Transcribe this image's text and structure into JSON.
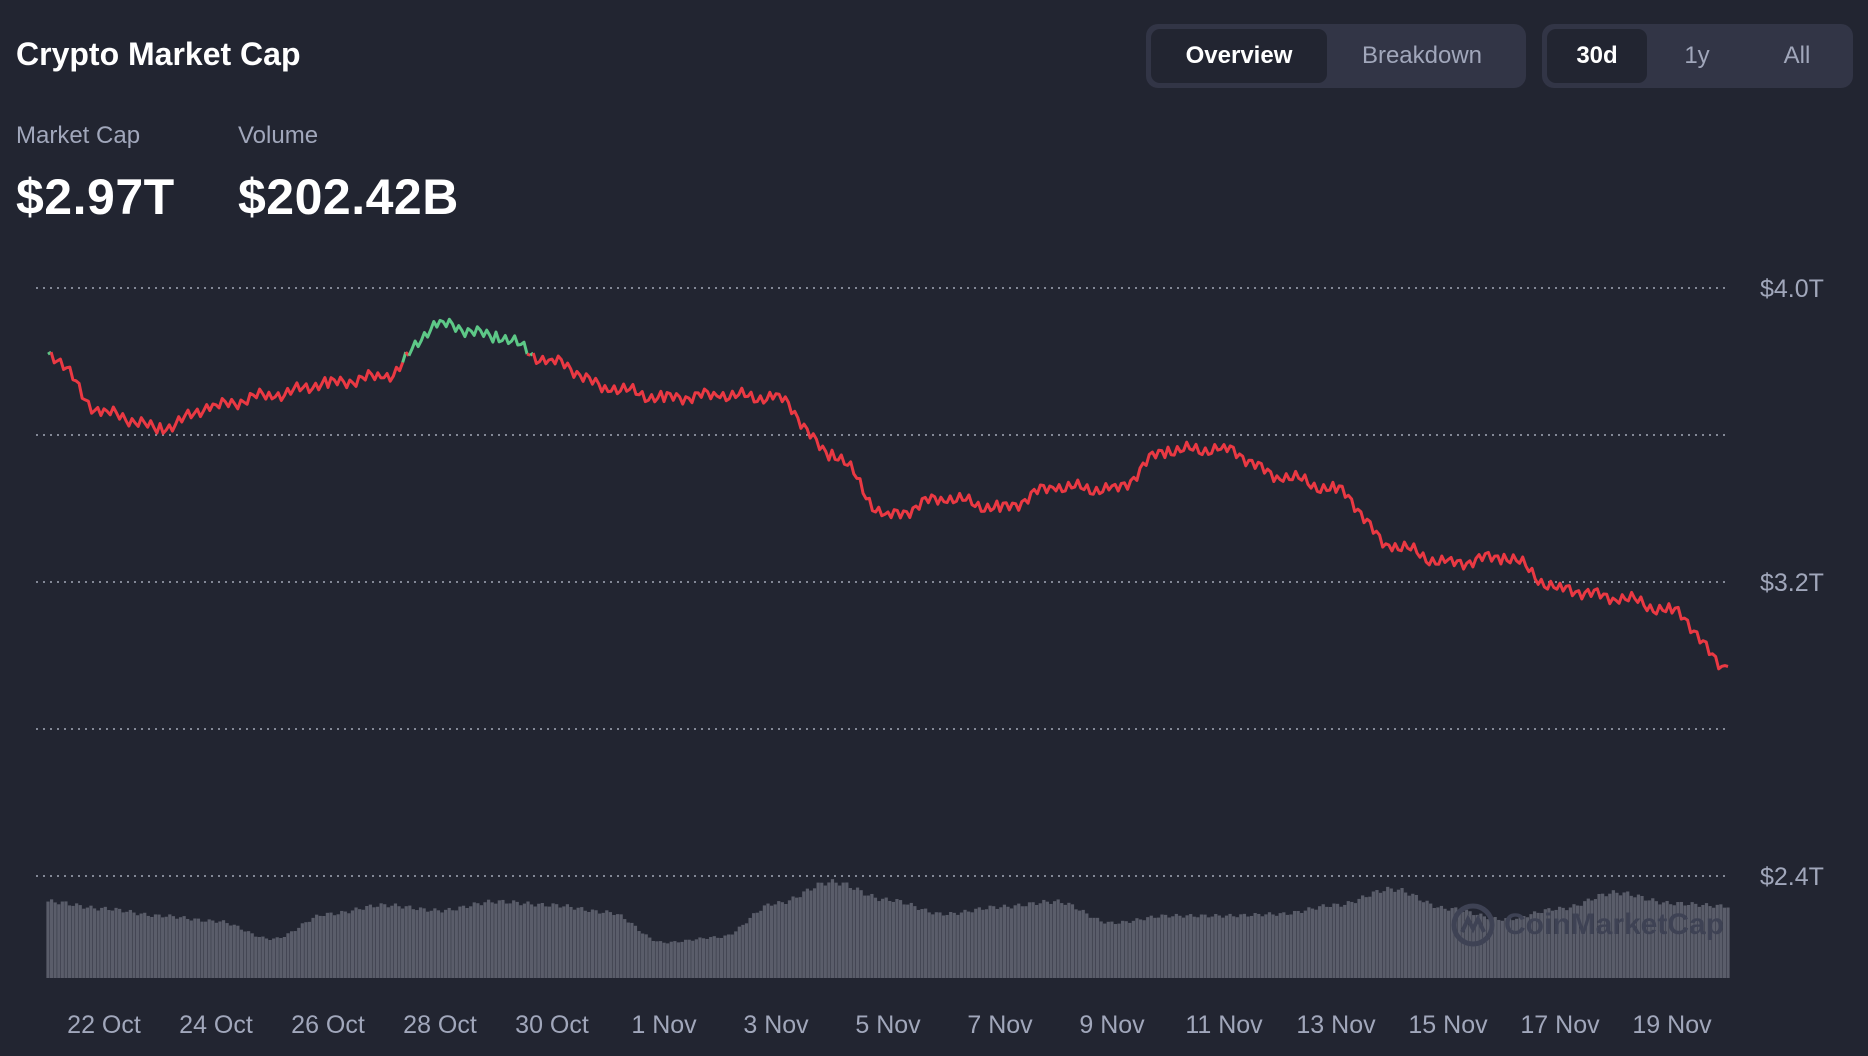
{
  "header": {
    "title": "Crypto Market Cap",
    "view_tabs": [
      "Overview",
      "Breakdown"
    ],
    "active_view": "Overview",
    "range_tabs": [
      "30d",
      "1y",
      "All"
    ],
    "active_range": "30d"
  },
  "stats": {
    "market_cap_label": "Market Cap",
    "market_cap_value": "$2.97T",
    "volume_label": "Volume",
    "volume_value": "$202.42B"
  },
  "watermark": "CoinMarketCap",
  "colors": {
    "background": "#222531",
    "up": "#5dc887",
    "down": "#ea3943",
    "volume": "#5a5d6a",
    "grid": "#cfd6e4",
    "axis_text": "#a1a7bb"
  },
  "chart_data": {
    "type": "line",
    "y_tick_labels": [
      "$4.0T",
      "$3.2T",
      "$2.4T"
    ],
    "y_ticks": [
      4.0,
      3.2,
      2.4
    ],
    "ylim": [
      2.4,
      4.0
    ],
    "grid": "dotted horizontal lines every 0.4T",
    "x_tick_labels": [
      "22 Oct",
      "24 Oct",
      "26 Oct",
      "28 Oct",
      "30 Oct",
      "1 Nov",
      "3 Nov",
      "5 Nov",
      "7 Nov",
      "9 Nov",
      "11 Nov",
      "13 Nov",
      "15 Nov",
      "17 Nov",
      "19 Nov"
    ],
    "color_rule": "green where value is above the first point, red where below",
    "series": [
      {
        "unit": "trillion USD",
        "x": [
          "21 Oct",
          "22 Oct",
          "23 Oct",
          "24 Oct",
          "25 Oct",
          "26 Oct",
          "27 Oct",
          "28 Oct",
          "29 Oct",
          "30 Oct",
          "31 Oct",
          "1 Nov",
          "2 Nov",
          "3 Nov",
          "4 Nov",
          "5 Nov",
          "6 Nov",
          "7 Nov",
          "8 Nov",
          "9 Nov",
          "10 Nov",
          "11 Nov",
          "12 Nov",
          "13 Nov",
          "14 Nov",
          "15 Nov",
          "16 Nov",
          "17 Nov",
          "18 Nov",
          "19 Nov",
          "20 Nov"
        ],
        "values": [
          3.82,
          3.66,
          3.62,
          3.68,
          3.71,
          3.74,
          3.76,
          3.9,
          3.87,
          3.8,
          3.73,
          3.7,
          3.71,
          3.7,
          3.55,
          3.38,
          3.43,
          3.4,
          3.46,
          3.45,
          3.56,
          3.56,
          3.49,
          3.45,
          3.3,
          3.25,
          3.27,
          3.18,
          3.16,
          3.12,
          2.97
        ]
      },
      {
        "name": "Volume",
        "unit": "billion USD",
        "x": [
          "21 Oct",
          "22 Oct",
          "23 Oct",
          "24 Oct",
          "25 Oct",
          "26 Oct",
          "27 Oct",
          "28 Oct",
          "29 Oct",
          "30 Oct",
          "31 Oct",
          "1 Nov",
          "2 Nov",
          "3 Nov",
          "4 Nov",
          "5 Nov",
          "6 Nov",
          "7 Nov",
          "8 Nov",
          "9 Nov",
          "10 Nov",
          "11 Nov",
          "12 Nov",
          "13 Nov",
          "14 Nov",
          "15 Nov",
          "16 Nov",
          "17 Nov",
          "18 Nov",
          "19 Nov",
          "20 Nov"
        ],
        "values": [
          215,
          195,
          175,
          160,
          110,
          180,
          205,
          190,
          215,
          205,
          185,
          100,
          115,
          210,
          270,
          220,
          180,
          200,
          215,
          155,
          175,
          175,
          180,
          205,
          250,
          195,
          165,
          195,
          240,
          210,
          202
        ]
      }
    ]
  }
}
